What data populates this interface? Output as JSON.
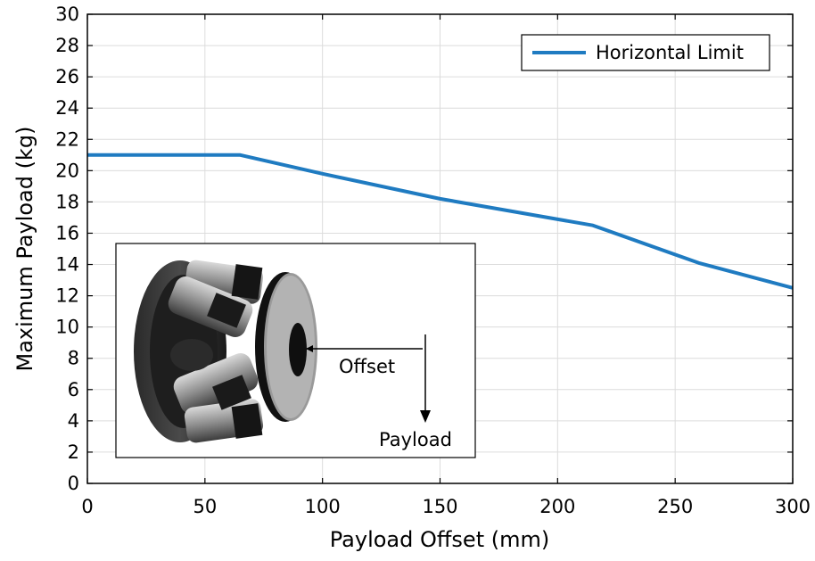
{
  "chart_data": {
    "type": "line",
    "xlabel": "Payload Offset (mm)",
    "ylabel": "Maximum Payload (kg)",
    "xlim": [
      0,
      300
    ],
    "ylim": [
      0,
      30
    ],
    "xticks": [
      0,
      50,
      100,
      150,
      200,
      250,
      300
    ],
    "yticks": [
      0,
      2,
      4,
      6,
      8,
      10,
      12,
      14,
      16,
      18,
      20,
      22,
      24,
      26,
      28,
      30
    ],
    "grid": true,
    "legend_position": "top-right",
    "series": [
      {
        "name": "Horizontal Limit",
        "color": "#1f7bc1",
        "x": [
          0,
          65,
          100,
          150,
          215,
          260,
          300
        ],
        "y": [
          21.0,
          21.0,
          19.8,
          18.2,
          16.5,
          14.1,
          12.5
        ]
      }
    ]
  },
  "inset": {
    "offset_label": "Offset",
    "payload_label": "Payload",
    "image_icon": "hexapod-robot-icon"
  }
}
